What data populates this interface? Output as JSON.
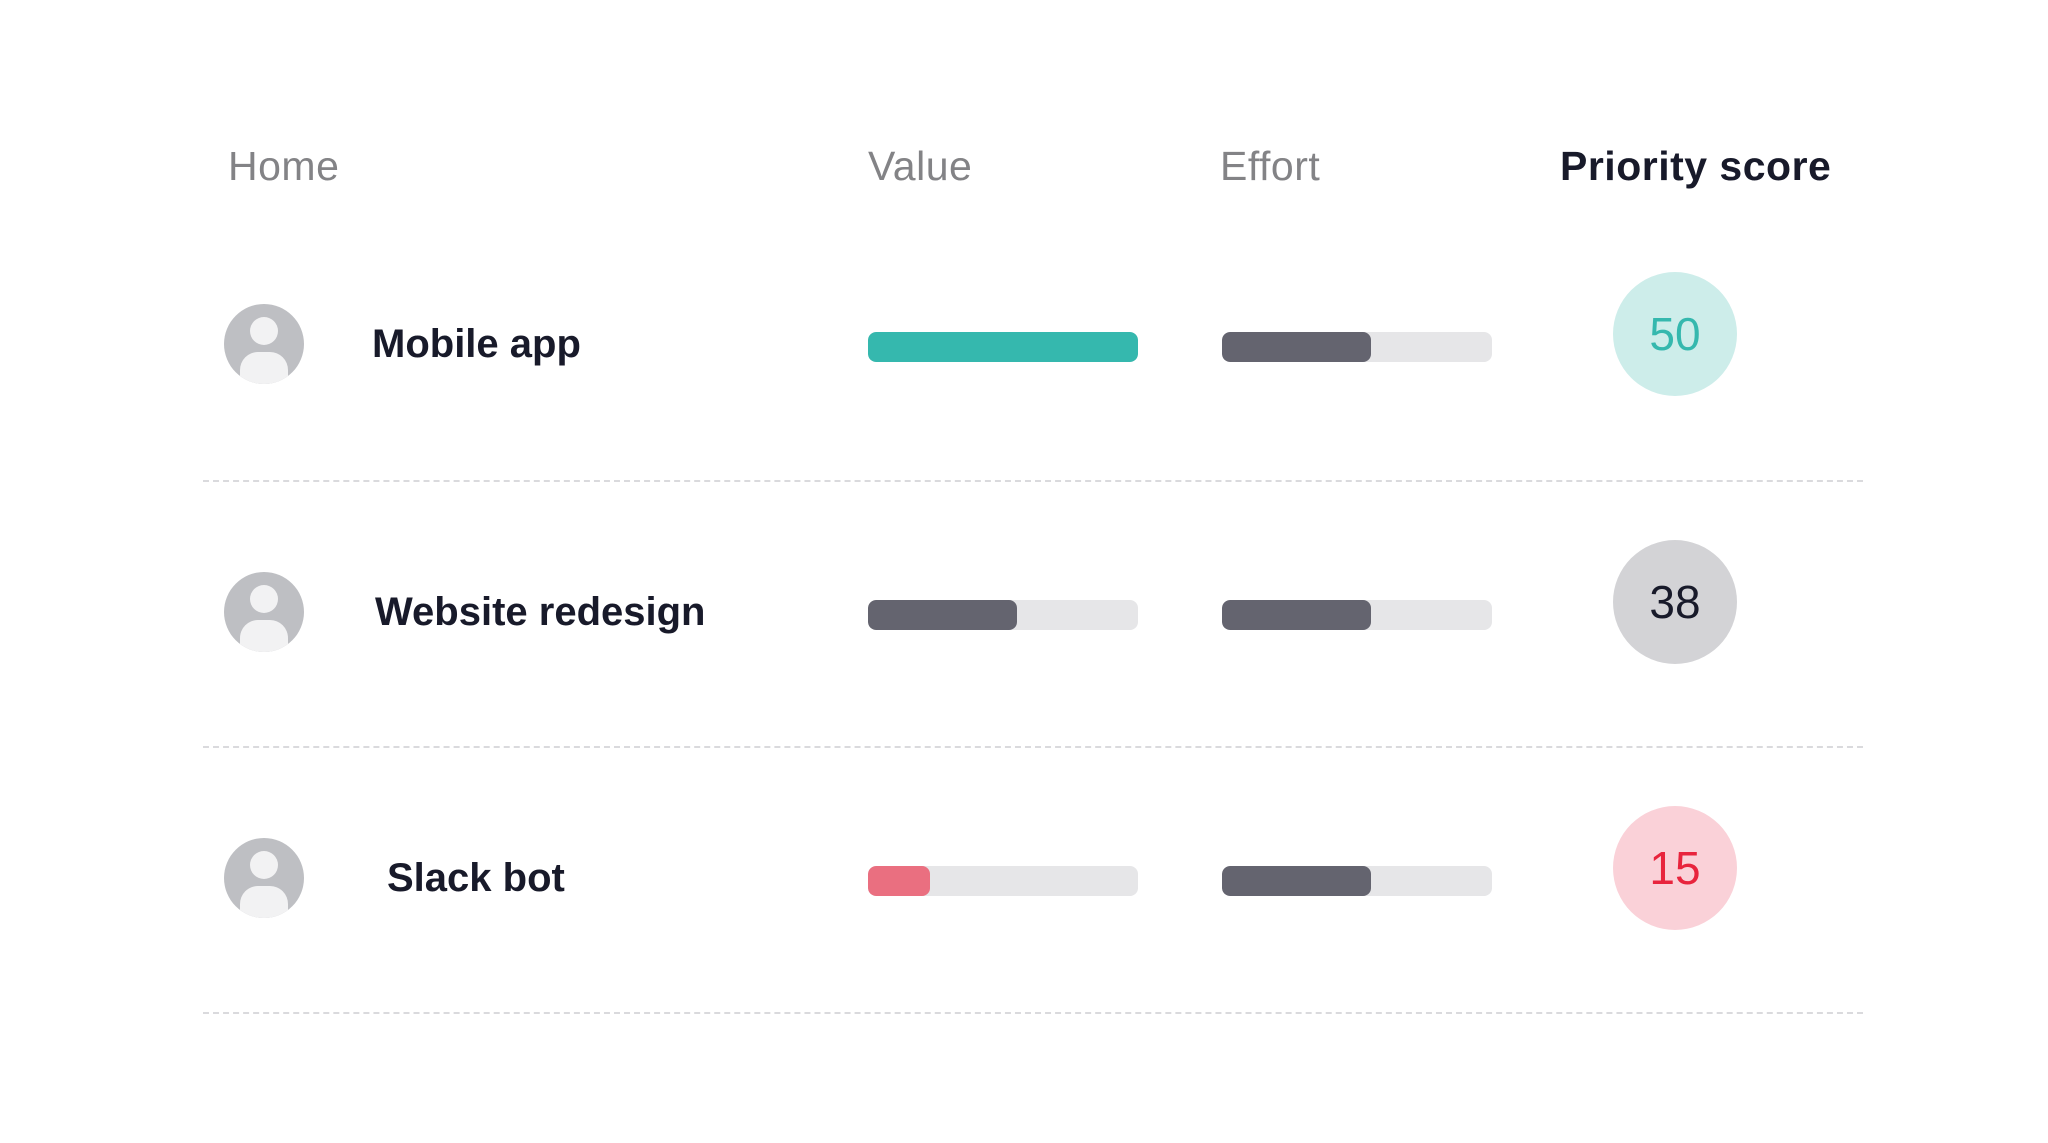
{
  "header": {
    "name_col": "Home",
    "value_col": "Value",
    "effort_col": "Effort",
    "score_col": "Priority score"
  },
  "colors": {
    "teal": "#35B8AE",
    "teal_light": "#CDEDEA",
    "gray_dark": "#64646F",
    "gray_light": "#D3D3D6",
    "red": "#EA6F80",
    "red_text": "#E8243D",
    "red_light": "#FAD1D8",
    "track": "#E6E6E8",
    "text_dark": "#181A2A"
  },
  "rows": [
    {
      "name": "Mobile app",
      "value": 1.0,
      "value_color": "#35B8AE",
      "effort": 0.55,
      "effort_color": "#64646F",
      "score": "50",
      "score_bg": "#CDEDEA",
      "score_color": "#35B8AE",
      "icon": "user-avatar-icon"
    },
    {
      "name": "Website redesign",
      "value": 0.55,
      "value_color": "#64646F",
      "effort": 0.55,
      "effort_color": "#64646F",
      "score": "38",
      "score_bg": "#D3D3D6",
      "score_color": "#181A2A",
      "icon": "user-avatar-icon"
    },
    {
      "name": "Slack bot",
      "value": 0.23,
      "value_color": "#EA6F80",
      "effort": 0.55,
      "effort_color": "#64646F",
      "score": "15",
      "score_bg": "#FAD1D8",
      "score_color": "#E8243D",
      "icon": "user-avatar-icon"
    }
  ]
}
